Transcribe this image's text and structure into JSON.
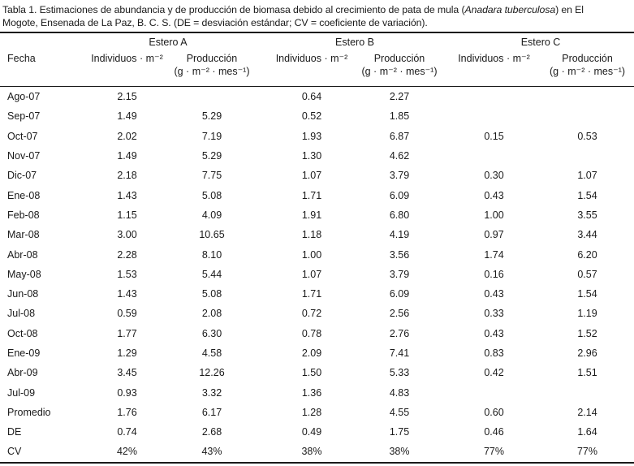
{
  "caption": {
    "line1_pre": "Tabla 1. Estimaciones de abundancia y de producción de biomasa debido al crecimiento de pata de mula (",
    "line1_italic": "Anadara tuberculosa",
    "line1_post": ") en El",
    "line2": "Mogote, Ensenada de La Paz, B. C. S. (DE = desviación estándar; CV = coeficiente de variación)."
  },
  "table": {
    "fecha_label": "Fecha",
    "groups": [
      {
        "label": "Estero A"
      },
      {
        "label": "Estero B"
      },
      {
        "label": "Estero C"
      }
    ],
    "sub_individuos": "Individuos · m⁻²",
    "sub_produccion_line1": "Producción",
    "sub_produccion_line2": "(g · m⁻² · mes⁻¹)",
    "rows": [
      [
        "Ago-07",
        "2.15",
        "",
        "0.64",
        "2.27",
        "",
        ""
      ],
      [
        "Sep-07",
        "1.49",
        "5.29",
        "0.52",
        "1.85",
        "",
        ""
      ],
      [
        "Oct-07",
        "2.02",
        "7.19",
        "1.93",
        "6.87",
        "0.15",
        "0.53"
      ],
      [
        "Nov-07",
        "1.49",
        "5.29",
        "1.30",
        "4.62",
        "",
        ""
      ],
      [
        "Dic-07",
        "2.18",
        "7.75",
        "1.07",
        "3.79",
        "0.30",
        "1.07"
      ],
      [
        "Ene-08",
        "1.43",
        "5.08",
        "1.71",
        "6.09",
        "0.43",
        "1.54"
      ],
      [
        "Feb-08",
        "1.15",
        "4.09",
        "1.91",
        "6.80",
        "1.00",
        "3.55"
      ],
      [
        "Mar-08",
        "3.00",
        "10.65",
        "1.18",
        "4.19",
        "0.97",
        "3.44"
      ],
      [
        "Abr-08",
        "2.28",
        "8.10",
        "1.00",
        "3.56",
        "1.74",
        "6.20"
      ],
      [
        "May-08",
        "1.53",
        "5.44",
        "1.07",
        "3.79",
        "0.16",
        "0.57"
      ],
      [
        "Jun-08",
        "1.43",
        "5.08",
        "1.71",
        "6.09",
        "0.43",
        "1.54"
      ],
      [
        "Jul-08",
        "0.59",
        "2.08",
        "0.72",
        "2.56",
        "0.33",
        "1.19"
      ],
      [
        "Oct-08",
        "1.77",
        "6.30",
        "0.78",
        "2.76",
        "0.43",
        "1.52"
      ],
      [
        "Ene-09",
        "1.29",
        "4.58",
        "2.09",
        "7.41",
        "0.83",
        "2.96"
      ],
      [
        "Abr-09",
        "3.45",
        "12.26",
        "1.50",
        "5.33",
        "0.42",
        "1.51"
      ],
      [
        "Jul-09",
        "0.93",
        "3.32",
        "1.36",
        "4.83",
        "",
        ""
      ],
      [
        "Promedio",
        "1.76",
        "6.17",
        "1.28",
        "4.55",
        "0.60",
        "2.14"
      ],
      [
        "DE",
        "0.74",
        "2.68",
        "0.49",
        "1.75",
        "0.46",
        "1.64"
      ],
      [
        "CV",
        "42%",
        "43%",
        "38%",
        "38%",
        "77%",
        "77%"
      ]
    ]
  },
  "colors": {
    "text": "#1a1a1a",
    "rule": "#1a1a1a",
    "background": "#ffffff"
  }
}
